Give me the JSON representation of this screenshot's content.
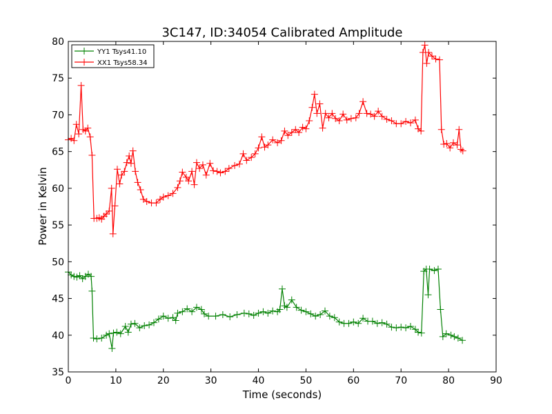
{
  "chart_data": {
    "type": "line",
    "title": "3C147, ID:34054 Calibrated Amplitude",
    "xlabel": "Time (seconds)",
    "ylabel": "Power in Kelvin",
    "xlim": [
      0,
      90
    ],
    "ylim": [
      35,
      80
    ],
    "xticks": [
      "0",
      "10",
      "20",
      "30",
      "40",
      "50",
      "60",
      "70",
      "80",
      "90"
    ],
    "yticks": [
      "35",
      "40",
      "45",
      "50",
      "55",
      "60",
      "65",
      "70",
      "75",
      "80"
    ],
    "grid": false,
    "legend_position": "top-left",
    "marker": "+",
    "series": [
      {
        "name": "YY1 Tsys41.10",
        "color": "#008000",
        "points": [
          [
            0,
            48.6
          ],
          [
            0.6,
            48.2
          ],
          [
            1.2,
            48.0
          ],
          [
            1.8,
            47.9
          ],
          [
            2.4,
            48.1
          ],
          [
            3.0,
            47.7
          ],
          [
            3.6,
            48.0
          ],
          [
            4.2,
            48.3
          ],
          [
            4.8,
            48.0
          ],
          [
            5.0,
            46.0
          ],
          [
            5.3,
            39.6
          ],
          [
            6.0,
            39.5
          ],
          [
            7.0,
            39.6
          ],
          [
            8.0,
            40.0
          ],
          [
            8.6,
            40.2
          ],
          [
            9.2,
            38.2
          ],
          [
            9.5,
            40.3
          ],
          [
            10.2,
            40.4
          ],
          [
            11.0,
            40.2
          ],
          [
            12.0,
            41.2
          ],
          [
            12.6,
            40.4
          ],
          [
            13.2,
            41.5
          ],
          [
            14.0,
            41.6
          ],
          [
            15.0,
            41.0
          ],
          [
            16.0,
            41.3
          ],
          [
            17.0,
            41.4
          ],
          [
            18.0,
            41.7
          ],
          [
            19.0,
            42.2
          ],
          [
            20.0,
            42.6
          ],
          [
            21.0,
            42.3
          ],
          [
            22.0,
            42.4
          ],
          [
            22.6,
            42.0
          ],
          [
            23.0,
            43.0
          ],
          [
            24.0,
            43.2
          ],
          [
            25.0,
            43.6
          ],
          [
            26.0,
            43.2
          ],
          [
            27.0,
            43.8
          ],
          [
            28.0,
            43.5
          ],
          [
            28.6,
            42.9
          ],
          [
            29.5,
            42.6
          ],
          [
            31.0,
            42.6
          ],
          [
            32.5,
            42.8
          ],
          [
            34.0,
            42.5
          ],
          [
            35.5,
            42.8
          ],
          [
            37.0,
            43.0
          ],
          [
            38.0,
            42.9
          ],
          [
            39.0,
            42.7
          ],
          [
            40.0,
            43.0
          ],
          [
            41.0,
            43.2
          ],
          [
            42.0,
            43.0
          ],
          [
            43.0,
            43.3
          ],
          [
            44.0,
            43.2
          ],
          [
            44.5,
            43.5
          ],
          [
            45.0,
            46.3
          ],
          [
            45.5,
            44.0
          ],
          [
            46.0,
            43.8
          ],
          [
            47.0,
            44.8
          ],
          [
            48.0,
            43.8
          ],
          [
            49.0,
            43.4
          ],
          [
            50.0,
            43.2
          ],
          [
            51.0,
            42.9
          ],
          [
            52.0,
            42.6
          ],
          [
            53.0,
            42.8
          ],
          [
            54.0,
            43.3
          ],
          [
            55.0,
            42.6
          ],
          [
            56.0,
            42.4
          ],
          [
            57.0,
            41.8
          ],
          [
            58.0,
            41.6
          ],
          [
            59.0,
            41.6
          ],
          [
            60.0,
            41.8
          ],
          [
            61.0,
            41.6
          ],
          [
            62.0,
            42.3
          ],
          [
            63.0,
            41.9
          ],
          [
            64.0,
            41.9
          ],
          [
            65.0,
            41.6
          ],
          [
            66.0,
            41.7
          ],
          [
            67.0,
            41.5
          ],
          [
            68.0,
            41.1
          ],
          [
            69.0,
            41.0
          ],
          [
            70.0,
            41.1
          ],
          [
            71.0,
            41.0
          ],
          [
            72.0,
            41.2
          ],
          [
            73.0,
            40.8
          ],
          [
            73.6,
            40.4
          ],
          [
            74.3,
            40.3
          ],
          [
            74.8,
            48.7
          ],
          [
            75.3,
            49.0
          ],
          [
            75.7,
            45.5
          ],
          [
            76.0,
            49.0
          ],
          [
            77.0,
            48.8
          ],
          [
            77.8,
            49.0
          ],
          [
            78.3,
            43.5
          ],
          [
            78.8,
            39.8
          ],
          [
            79.5,
            40.2
          ],
          [
            80.5,
            40.0
          ],
          [
            81.2,
            39.8
          ],
          [
            82.0,
            39.6
          ],
          [
            82.9,
            39.3
          ]
        ]
      },
      {
        "name": "XX1 Tsys58.34",
        "color": "#ff0000",
        "points": [
          [
            0,
            66.6
          ],
          [
            0.6,
            66.8
          ],
          [
            1.2,
            66.5
          ],
          [
            1.7,
            68.7
          ],
          [
            2.2,
            67.4
          ],
          [
            2.7,
            74.0
          ],
          [
            3.1,
            68.0
          ],
          [
            3.6,
            67.8
          ],
          [
            4.1,
            68.2
          ],
          [
            4.6,
            67.0
          ],
          [
            5.0,
            64.5
          ],
          [
            5.4,
            55.9
          ],
          [
            6.0,
            55.9
          ],
          [
            6.5,
            56.0
          ],
          [
            7.0,
            55.8
          ],
          [
            7.5,
            56.2
          ],
          [
            8.0,
            56.5
          ],
          [
            8.6,
            56.9
          ],
          [
            9.1,
            60.0
          ],
          [
            9.4,
            53.8
          ],
          [
            9.8,
            57.6
          ],
          [
            10.3,
            62.6
          ],
          [
            10.8,
            60.6
          ],
          [
            11.2,
            61.8
          ],
          [
            11.8,
            62.3
          ],
          [
            12.3,
            63.5
          ],
          [
            12.8,
            64.4
          ],
          [
            13.2,
            63.4
          ],
          [
            13.6,
            65.1
          ],
          [
            14.1,
            62.3
          ],
          [
            14.6,
            60.8
          ],
          [
            15.2,
            59.8
          ],
          [
            15.8,
            58.5
          ],
          [
            16.5,
            58.2
          ],
          [
            17.5,
            58.0
          ],
          [
            18.5,
            58.0
          ],
          [
            19.3,
            58.5
          ],
          [
            20.0,
            58.8
          ],
          [
            21.0,
            59.0
          ],
          [
            22.0,
            59.3
          ],
          [
            23.0,
            60.1
          ],
          [
            23.5,
            61.0
          ],
          [
            24.0,
            62.2
          ],
          [
            24.8,
            61.5
          ],
          [
            25.3,
            61.0
          ],
          [
            26.0,
            62.3
          ],
          [
            26.5,
            60.5
          ],
          [
            27.0,
            63.5
          ],
          [
            27.6,
            62.7
          ],
          [
            28.3,
            63.2
          ],
          [
            29.0,
            61.8
          ],
          [
            29.8,
            63.4
          ],
          [
            30.5,
            62.4
          ],
          [
            31.3,
            62.3
          ],
          [
            32.0,
            62.1
          ],
          [
            33.0,
            62.3
          ],
          [
            33.8,
            62.7
          ],
          [
            35.0,
            63.1
          ],
          [
            36.0,
            63.3
          ],
          [
            36.8,
            64.7
          ],
          [
            37.5,
            63.8
          ],
          [
            38.5,
            64.2
          ],
          [
            39.3,
            64.7
          ],
          [
            40.0,
            65.5
          ],
          [
            40.7,
            67.0
          ],
          [
            41.3,
            65.6
          ],
          [
            42.0,
            65.9
          ],
          [
            43.0,
            66.6
          ],
          [
            44.0,
            66.2
          ],
          [
            44.8,
            66.5
          ],
          [
            45.5,
            67.8
          ],
          [
            46.2,
            67.2
          ],
          [
            47.0,
            67.6
          ],
          [
            47.8,
            68.0
          ],
          [
            48.5,
            67.6
          ],
          [
            49.3,
            68.3
          ],
          [
            50.0,
            68.1
          ],
          [
            50.7,
            69.2
          ],
          [
            51.3,
            71.0
          ],
          [
            51.8,
            72.8
          ],
          [
            52.3,
            70.2
          ],
          [
            52.9,
            71.5
          ],
          [
            53.5,
            68.2
          ],
          [
            54.1,
            70.2
          ],
          [
            54.8,
            69.6
          ],
          [
            55.5,
            70.2
          ],
          [
            56.2,
            69.5
          ],
          [
            57.0,
            69.2
          ],
          [
            57.8,
            70.1
          ],
          [
            58.6,
            69.3
          ],
          [
            59.5,
            69.5
          ],
          [
            60.5,
            69.6
          ],
          [
            61.2,
            70.2
          ],
          [
            62.0,
            71.8
          ],
          [
            62.8,
            70.2
          ],
          [
            63.6,
            70.1
          ],
          [
            64.4,
            69.8
          ],
          [
            65.2,
            70.5
          ],
          [
            66.0,
            69.8
          ],
          [
            67.0,
            69.4
          ],
          [
            68.0,
            69.2
          ],
          [
            69.0,
            68.8
          ],
          [
            70.0,
            68.8
          ],
          [
            71.0,
            69.1
          ],
          [
            72.0,
            68.9
          ],
          [
            73.0,
            69.3
          ],
          [
            73.6,
            68.1
          ],
          [
            74.2,
            67.8
          ],
          [
            74.6,
            78.5
          ],
          [
            75.0,
            79.5
          ],
          [
            75.4,
            77.0
          ],
          [
            75.8,
            78.5
          ],
          [
            76.5,
            78.0
          ],
          [
            77.3,
            77.6
          ],
          [
            78.1,
            77.5
          ],
          [
            78.5,
            68.0
          ],
          [
            79.0,
            66.0
          ],
          [
            79.6,
            66.1
          ],
          [
            80.3,
            65.5
          ],
          [
            81.0,
            66.2
          ],
          [
            81.8,
            65.9
          ],
          [
            82.2,
            68.0
          ],
          [
            82.6,
            65.3
          ],
          [
            83.0,
            65.1
          ]
        ]
      }
    ]
  }
}
